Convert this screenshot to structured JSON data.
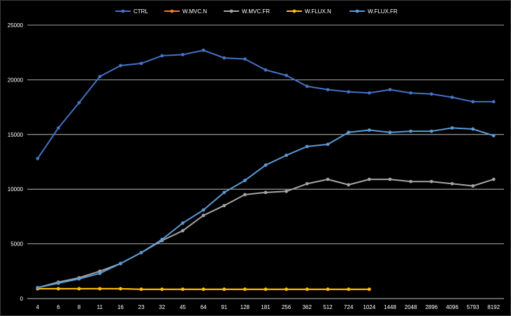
{
  "chart_data": {
    "type": "line",
    "title": "",
    "xlabel": "",
    "ylabel": "",
    "ylim": [
      0,
      25000
    ],
    "yticks": [
      0,
      5000,
      10000,
      15000,
      20000,
      25000
    ],
    "grid": true,
    "legend_position": "top",
    "categories": [
      "4",
      "6",
      "8",
      "11",
      "16",
      "23",
      "32",
      "45",
      "64",
      "91",
      "128",
      "181",
      "256",
      "362",
      "512",
      "724",
      "1024",
      "1448",
      "2048",
      "2896",
      "4096",
      "5793",
      "8192"
    ],
    "series": [
      {
        "name": "CTRL",
        "color": "#4472C4",
        "values": [
          12800,
          15600,
          17900,
          20300,
          21300,
          21500,
          22200,
          22300,
          22700,
          22000,
          21900,
          20900,
          20400,
          19400,
          19100,
          18900,
          18800,
          19100,
          18800,
          18700,
          18400,
          18000,
          18000
        ]
      },
      {
        "name": "W.MVC.N",
        "color": "#ED7D31",
        "values": [
          900,
          900,
          900,
          900,
          900,
          850,
          850,
          850,
          850,
          850,
          850,
          850,
          850,
          850,
          850,
          850,
          850,
          null,
          null,
          null,
          null,
          null,
          null
        ]
      },
      {
        "name": "W.MVC.FR",
        "color": "#A5A5A5",
        "values": [
          1000,
          1500,
          1900,
          2500,
          3200,
          4200,
          5300,
          6200,
          7600,
          8500,
          9500,
          9700,
          9800,
          10500,
          10900,
          10400,
          10900,
          10900,
          10700,
          10700,
          10500,
          10300,
          10900
        ]
      },
      {
        "name": "W.FLUX.N",
        "color": "#FFC000",
        "values": [
          900,
          900,
          900,
          900,
          900,
          850,
          850,
          850,
          850,
          850,
          850,
          850,
          850,
          850,
          850,
          850,
          850,
          null,
          null,
          null,
          null,
          null,
          null
        ]
      },
      {
        "name": "W.FLUX.FR",
        "color": "#5B9BD5",
        "values": [
          1000,
          1400,
          1800,
          2300,
          3200,
          4200,
          5400,
          6900,
          8100,
          9700,
          10800,
          12200,
          13100,
          13900,
          14100,
          15200,
          15400,
          15200,
          15300,
          15300,
          15600,
          15500,
          14900
        ]
      }
    ]
  }
}
